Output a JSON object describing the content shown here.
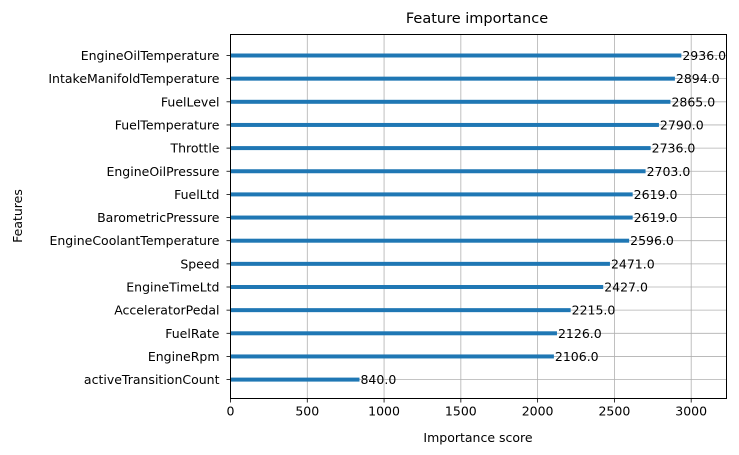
{
  "chart_data": {
    "type": "bar",
    "orientation": "horizontal",
    "title": "Feature importance",
    "xlabel": "Importance score",
    "ylabel": "Features",
    "xlim": [
      0,
      3230
    ],
    "xticks": [
      "0",
      "500",
      "1000",
      "1500",
      "2000",
      "2500",
      "3000"
    ],
    "grid": true,
    "bar_color": "#1f77b4",
    "categories": [
      "EngineOilTemperature",
      "IntakeManifoldTemperature",
      "FuelLevel",
      "FuelTemperature",
      "Throttle",
      "EngineOilPressure",
      "FuelLtd",
      "BarometricPressure",
      "EngineCoolantTemperature",
      "Speed",
      "EngineTimeLtd",
      "AcceleratorPedal",
      "FuelRate",
      "EngineRpm",
      "activeTransitionCount"
    ],
    "values": [
      2936,
      2894,
      2865,
      2790,
      2736,
      2703,
      2619,
      2619,
      2596,
      2471,
      2427,
      2215,
      2126,
      2106,
      840
    ],
    "value_labels": [
      "2936.0",
      "2894.0",
      "2865.0",
      "2790.0",
      "2736.0",
      "2703.0",
      "2619.0",
      "2619.0",
      "2596.0",
      "2471.0",
      "2427.0",
      "2215.0",
      "2126.0",
      "2106.0",
      "840.0"
    ]
  }
}
